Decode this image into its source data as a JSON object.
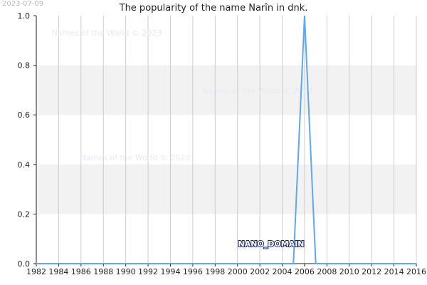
{
  "header": {
    "date": "2023-07-09",
    "title": "The popularity of the name Narîn in dnk."
  },
  "watermarks": [
    "Names of the World © 2023",
    "Names of the World © 2023",
    "Names of the World © 2023"
  ],
  "point_label": "NANO_DOMAIN",
  "colors": {
    "line": "#5fa8ec",
    "band": "#f2f2f2",
    "grid": "#cccccc",
    "axis": "#222222"
  },
  "chart_data": {
    "type": "line",
    "title": "The popularity of the name Narîn in dnk.",
    "xlabel": "",
    "ylabel": "",
    "xlim": [
      1982,
      2016
    ],
    "ylim": [
      0,
      1
    ],
    "x_ticks": [
      "1982",
      "1984",
      "1986",
      "1988",
      "1990",
      "1992",
      "1994",
      "1996",
      "1998",
      "2000",
      "2002",
      "2004",
      "2006",
      "2008",
      "2010",
      "2012",
      "2014",
      "2016"
    ],
    "y_ticks": [
      "0.0",
      "0.2",
      "0.4",
      "0.6",
      "0.8",
      "1.0"
    ],
    "grid": true,
    "series": [
      {
        "x": [
          1982,
          1983,
          1984,
          1985,
          1986,
          1987,
          1988,
          1989,
          1990,
          1991,
          1992,
          1993,
          1994,
          1995,
          1996,
          1997,
          1998,
          1999,
          2000,
          2001,
          2002,
          2003,
          2004,
          2005,
          2006,
          2007,
          2008,
          2009,
          2010,
          2011,
          2012,
          2013,
          2014,
          2015,
          2016
        ],
        "y": [
          0,
          0,
          0,
          0,
          0,
          0,
          0,
          0,
          0,
          0,
          0,
          0,
          0,
          0,
          0,
          0,
          0,
          0,
          0,
          0,
          0,
          0,
          0,
          0,
          1,
          0,
          0,
          0,
          0,
          0,
          0,
          0,
          0,
          0,
          0
        ]
      }
    ]
  }
}
